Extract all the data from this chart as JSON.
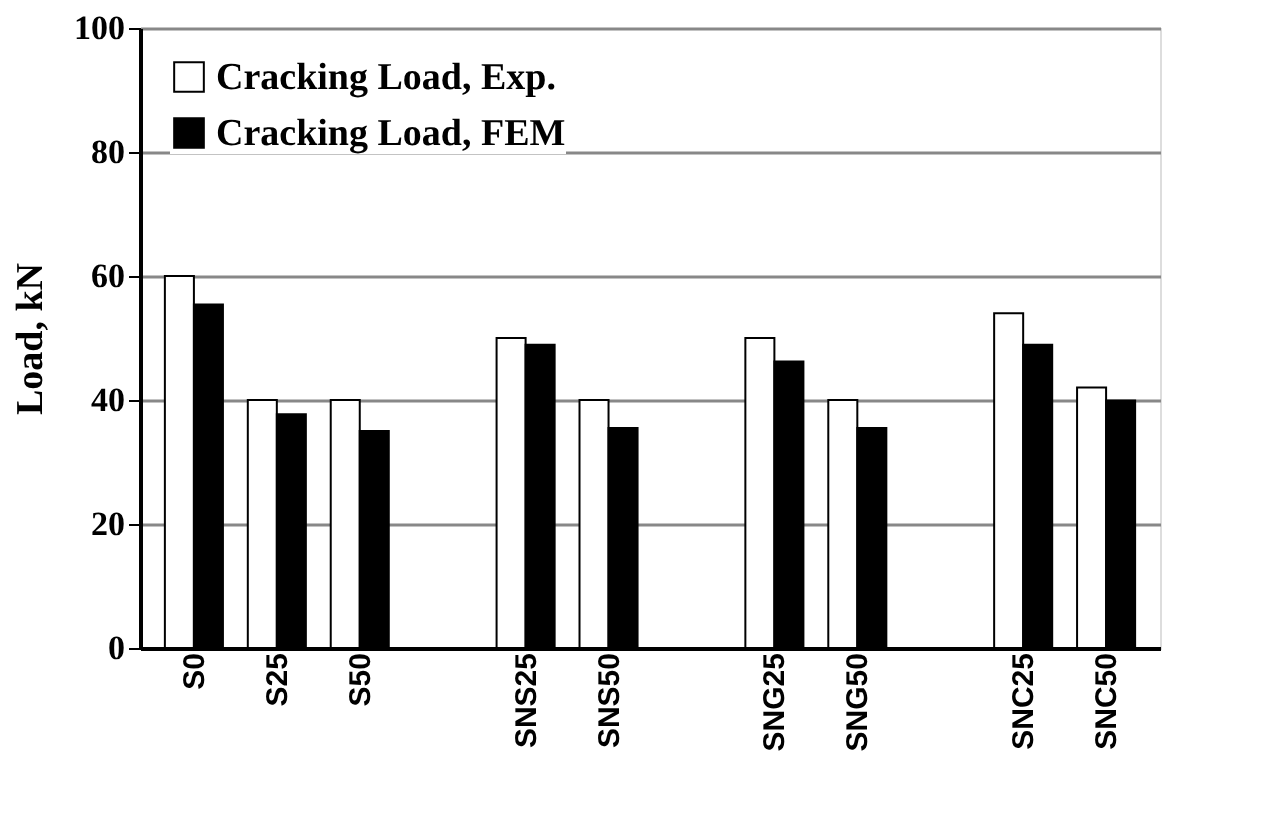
{
  "chart_data": {
    "type": "bar",
    "ylabel": "Load, kN",
    "categories": [
      "S0",
      "S25",
      "S50",
      null,
      "SNS25",
      "SNS50",
      null,
      "SNG25",
      "SNG50",
      null,
      "SNC25",
      "SNC50"
    ],
    "series": [
      {
        "name": "Cracking Load, Exp.",
        "color": "#ffffff",
        "values": [
          60,
          40,
          40,
          null,
          50,
          40,
          null,
          50,
          40,
          null,
          54,
          42
        ]
      },
      {
        "name": "Cracking Load, FEM",
        "color": "#000000",
        "values": [
          55.4,
          37.7,
          35,
          null,
          48.9,
          35.5,
          null,
          46.2,
          35.5,
          null,
          48.9,
          39.9
        ]
      }
    ],
    "ylim": [
      0,
      100
    ],
    "yticks": [
      0,
      20,
      40,
      60,
      80,
      100
    ],
    "grid": "y",
    "legend": "top left"
  }
}
